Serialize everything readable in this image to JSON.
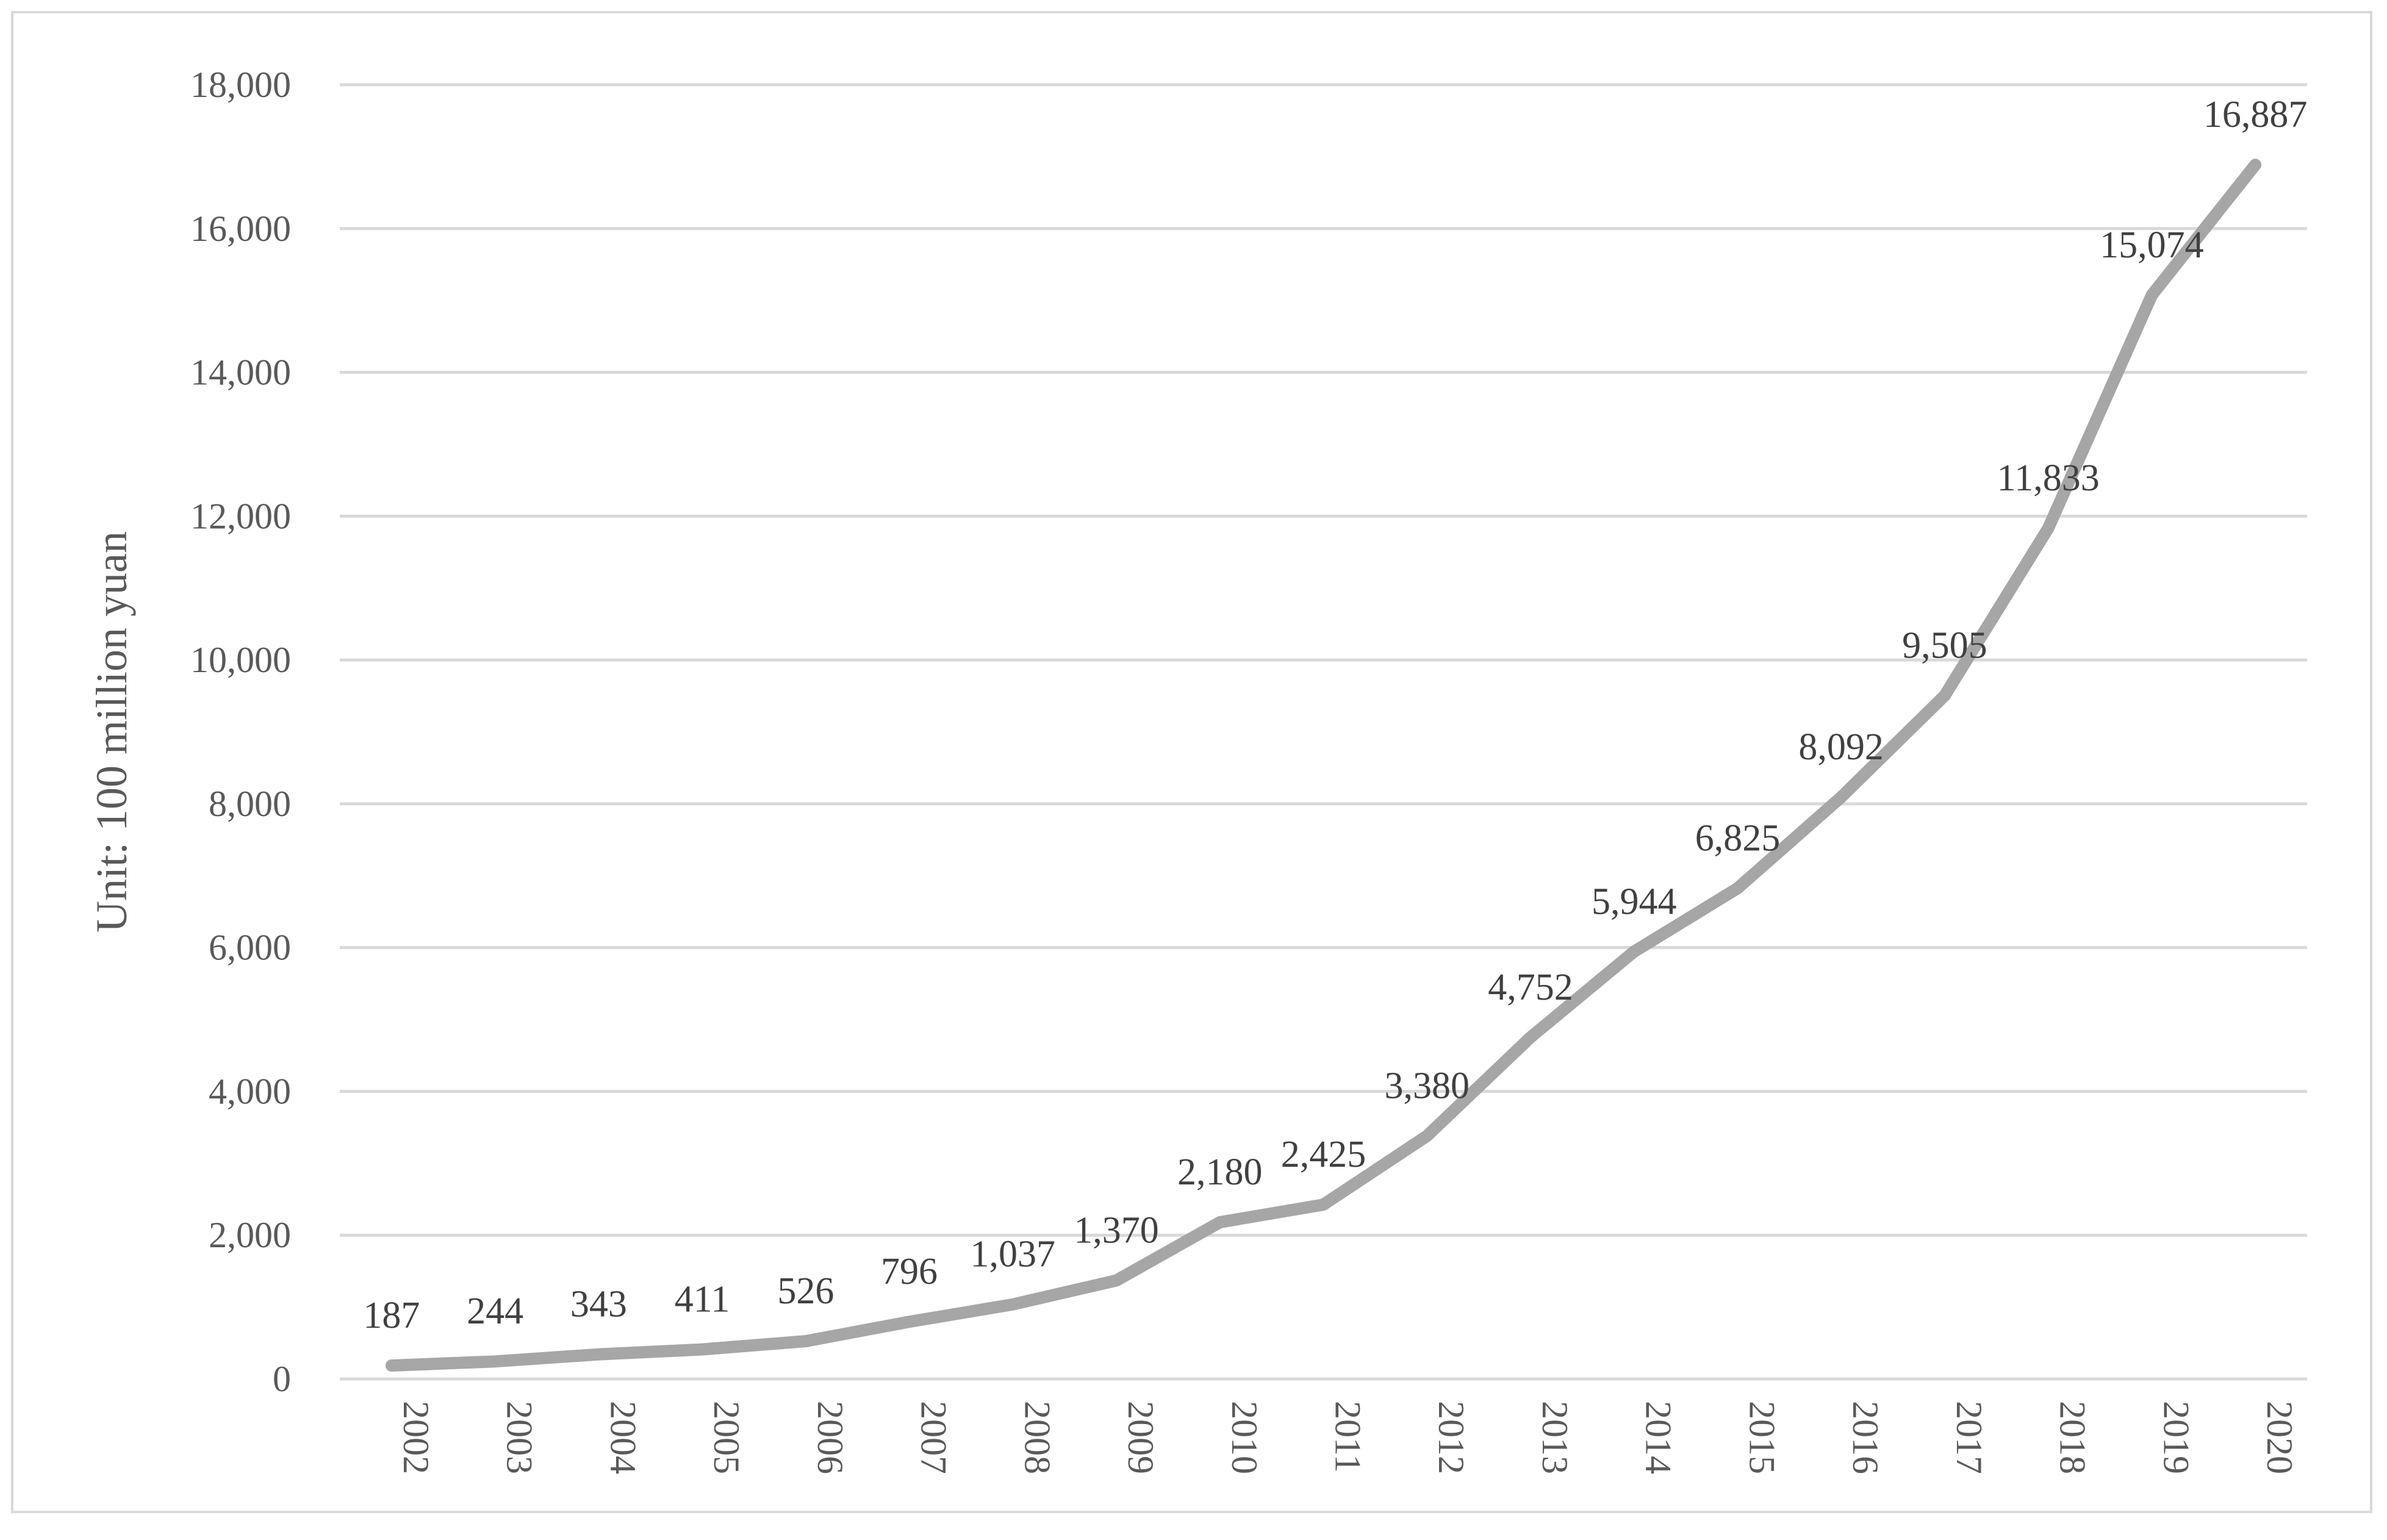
{
  "chart_data": {
    "type": "line",
    "title": "",
    "xlabel": "",
    "ylabel": "Unit: 100 million yuan",
    "categories": [
      "2002",
      "2003",
      "2004",
      "2005",
      "2006",
      "2007",
      "2008",
      "2009",
      "2010",
      "2011",
      "2012",
      "2013",
      "2014",
      "2015",
      "2016",
      "2017",
      "2018",
      "2019",
      "2020"
    ],
    "series": [
      {
        "values": [
          187,
          244,
          343,
          411,
          526,
          796,
          1037,
          1370,
          2180,
          2425,
          3380,
          4752,
          5944,
          6825,
          8092,
          9505,
          11833,
          15074,
          16887
        ],
        "labels": [
          "187",
          "244",
          "343",
          "411",
          "526",
          "796",
          "1,037",
          "1,370",
          "2,180",
          "2,425",
          "3,380",
          "4,752",
          "5,944",
          "6,825",
          "8,092",
          "9,505",
          "11,833",
          "15,074",
          "16,887"
        ]
      }
    ],
    "ylim": [
      0,
      18000
    ],
    "yticks": [
      0,
      2000,
      4000,
      6000,
      8000,
      10000,
      12000,
      14000,
      16000,
      18000
    ],
    "ytick_labels": [
      "0",
      "2,000",
      "4,000",
      "6,000",
      "8,000",
      "10,000",
      "12,000",
      "14,000",
      "16,000",
      "18,000"
    ],
    "grid": "horizontal",
    "legend": "none",
    "line_color": "#a6a6a6",
    "grid_color": "#d9d9d9"
  }
}
